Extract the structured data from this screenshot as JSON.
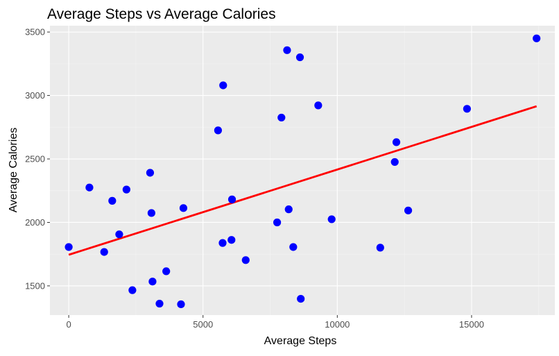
{
  "chart_data": {
    "type": "scatter",
    "title": "Average Steps vs Average Calories",
    "xlabel": "Average Steps",
    "ylabel": "Average Calories",
    "xlim": [
      -700,
      18100
    ],
    "ylim": [
      1270,
      3550
    ],
    "x_ticks": [
      0,
      5000,
      10000,
      15000
    ],
    "x_tick_labels": [
      "0",
      "5000",
      "10000",
      "15000"
    ],
    "y_ticks": [
      1500,
      2000,
      2500,
      3000,
      3500
    ],
    "y_tick_labels": [
      "1500",
      "2000",
      "2500",
      "3000",
      "3500"
    ],
    "grid": true,
    "background": "#EBEBEB",
    "point_color": "#0000FF",
    "line_color": "#FF0000",
    "points": [
      {
        "x": 0,
        "y": 1806
      },
      {
        "x": 770,
        "y": 2275
      },
      {
        "x": 1320,
        "y": 1767
      },
      {
        "x": 1620,
        "y": 2170
      },
      {
        "x": 1880,
        "y": 1906
      },
      {
        "x": 2150,
        "y": 2259
      },
      {
        "x": 2370,
        "y": 1466
      },
      {
        "x": 3030,
        "y": 2391
      },
      {
        "x": 3080,
        "y": 2074
      },
      {
        "x": 3120,
        "y": 1534
      },
      {
        "x": 3380,
        "y": 1360
      },
      {
        "x": 3630,
        "y": 1615
      },
      {
        "x": 4180,
        "y": 1355
      },
      {
        "x": 4270,
        "y": 2113
      },
      {
        "x": 5560,
        "y": 2725
      },
      {
        "x": 5730,
        "y": 1838
      },
      {
        "x": 5750,
        "y": 3080
      },
      {
        "x": 6060,
        "y": 1862
      },
      {
        "x": 6080,
        "y": 2181
      },
      {
        "x": 6590,
        "y": 1703
      },
      {
        "x": 7760,
        "y": 2000
      },
      {
        "x": 7920,
        "y": 2826
      },
      {
        "x": 8130,
        "y": 3357
      },
      {
        "x": 8190,
        "y": 2103
      },
      {
        "x": 8360,
        "y": 1806
      },
      {
        "x": 8610,
        "y": 3301
      },
      {
        "x": 8640,
        "y": 1398
      },
      {
        "x": 9290,
        "y": 2922
      },
      {
        "x": 9790,
        "y": 2025
      },
      {
        "x": 11600,
        "y": 1801
      },
      {
        "x": 12140,
        "y": 2476
      },
      {
        "x": 12200,
        "y": 2632
      },
      {
        "x": 12640,
        "y": 2094
      },
      {
        "x": 14830,
        "y": 2895
      },
      {
        "x": 17420,
        "y": 3450
      }
    ],
    "trend_line": {
      "x": [
        0,
        17420
      ],
      "y": [
        1745,
        2915
      ]
    }
  }
}
